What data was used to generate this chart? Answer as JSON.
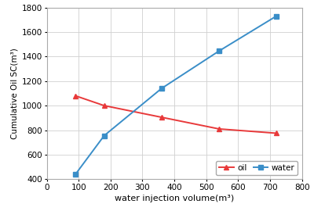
{
  "oil_x": [
    90,
    180,
    360,
    540,
    720
  ],
  "oil_y": [
    1080,
    1000,
    905,
    810,
    775
  ],
  "water_x": [
    90,
    180,
    360,
    540,
    720
  ],
  "water_y": [
    440,
    755,
    1140,
    1445,
    1730
  ],
  "oil_color": "#e8393a",
  "water_color": "#3a8ec8",
  "xlabel": "water injection volume(m³)",
  "ylabel": "Cumulative Oil SC(m³)",
  "xlim": [
    0,
    800
  ],
  "ylim": [
    400,
    1800
  ],
  "xticks": [
    0,
    100,
    200,
    300,
    400,
    500,
    600,
    700,
    800
  ],
  "yticks": [
    400,
    600,
    800,
    1000,
    1200,
    1400,
    1600,
    1800
  ],
  "legend_oil": "oil",
  "legend_water": "water",
  "background_color": "#ffffff",
  "grid_color": "#d0d0d0",
  "figsize": [
    4.0,
    2.7
  ],
  "dpi": 100
}
